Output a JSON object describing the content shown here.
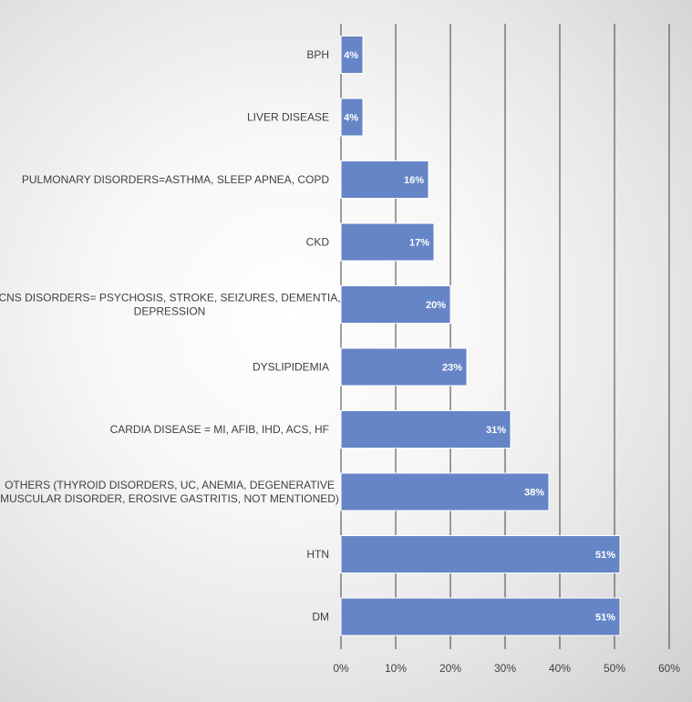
{
  "chart_data": {
    "type": "bar",
    "orientation": "horizontal",
    "categories": [
      "BPH",
      "LIVER DISEASE",
      "PULMONARY DISORDERS=ASTHMA, SLEEP APNEA, COPD",
      "CKD",
      "CNS DISORDERS= PSYCHOSIS, STROKE, SEIZURES, DEMENTIA, DEPRESSION",
      "DYSLIPIDEMIA",
      "CARDIA DISEASE = MI, AFIB, IHD, ACS, HF",
      "OTHERS (THYROID DISORDERS, UC, ANEMIA, DEGENERATIVE MUSCULAR DISORDER, EROSIVE GASTRITIS, NOT MENTIONED)",
      "HTN",
      "DM"
    ],
    "category_lines": [
      [
        "BPH"
      ],
      [
        "LIVER DISEASE"
      ],
      [
        "PULMONARY DISORDERS=ASTHMA, SLEEP APNEA, COPD"
      ],
      [
        "CKD"
      ],
      [
        "CNS DISORDERS= PSYCHOSIS, STROKE, SEIZURES, DEMENTIA,",
        "DEPRESSION"
      ],
      [
        "DYSLIPIDEMIA"
      ],
      [
        "CARDIA DISEASE = MI, AFIB, IHD, ACS, HF"
      ],
      [
        "OTHERS (THYROID DISORDERS, UC, ANEMIA, DEGENERATIVE",
        "MUSCULAR DISORDER, EROSIVE GASTRITIS, NOT MENTIONED)"
      ],
      [
        "HTN"
      ],
      [
        "DM"
      ]
    ],
    "values": [
      4,
      4,
      16,
      17,
      20,
      23,
      31,
      38,
      51,
      51
    ],
    "data_labels": [
      "4%",
      "4%",
      "16%",
      "17%",
      "20%",
      "23%",
      "31%",
      "38%",
      "51%",
      "51%"
    ],
    "x_ticks": [
      "0%",
      "10%",
      "20%",
      "30%",
      "40%",
      "50%",
      "60%"
    ],
    "xlim": [
      0,
      60
    ],
    "grid": true,
    "bar_color": "#6585c6",
    "grid_color": "#404040"
  }
}
